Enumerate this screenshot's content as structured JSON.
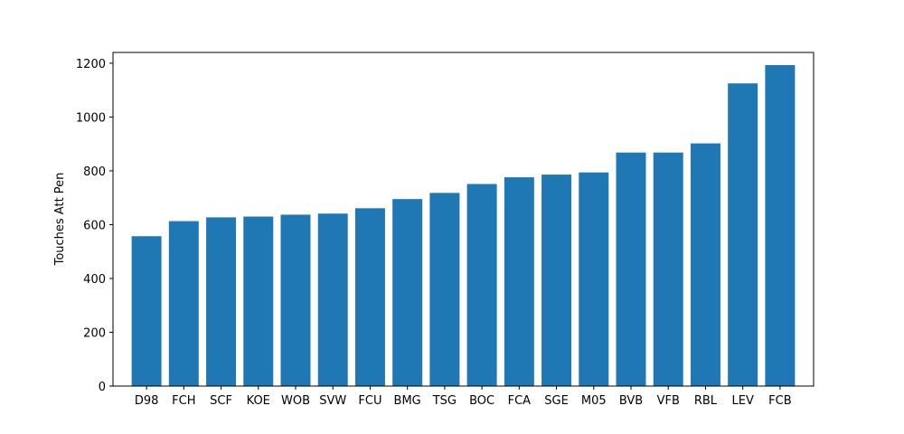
{
  "chart_data": {
    "type": "bar",
    "title": "",
    "xlabel": "",
    "ylabel": "Touches Att Pen",
    "categories": [
      "D98",
      "FCH",
      "SCF",
      "KOE",
      "WOB",
      "SVW",
      "FCU",
      "BMG",
      "TSG",
      "BOC",
      "FCA",
      "SGE",
      "M05",
      "BVB",
      "VFB",
      "RBL",
      "LEV",
      "FCB"
    ],
    "values": [
      557,
      613,
      627,
      630,
      637,
      641,
      661,
      695,
      718,
      751,
      776,
      786,
      794,
      868,
      868,
      902,
      1125,
      1193
    ],
    "ylim": [
      0,
      1240
    ],
    "yticks": [
      0,
      200,
      400,
      600,
      800,
      1000,
      1200
    ],
    "grid": false,
    "legend": "none",
    "bar_color": "#1f77b4"
  }
}
